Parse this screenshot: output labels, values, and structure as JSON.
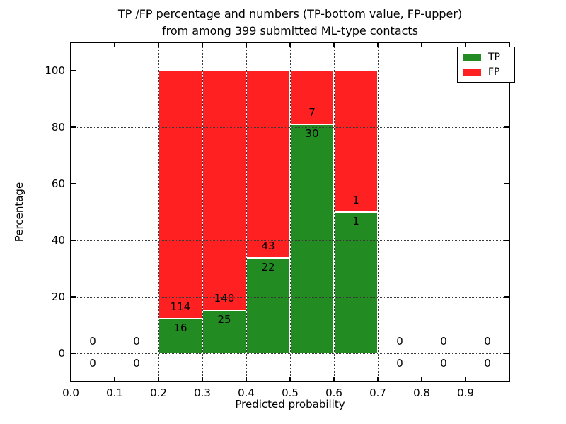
{
  "chart_data": {
    "type": "bar",
    "stacked": true,
    "normalized_total_percent": 100,
    "title_lines": [
      "TP /FP percentage and numbers (TP-bottom value, FP-upper)",
      "from among 399 submitted ML-type contacts"
    ],
    "title": "TP /FP percentage and numbers (TP-bottom value, FP-upper) from among 399 submitted ML-type contacts",
    "xlabel": "Predicted probability",
    "ylabel": "Percentage",
    "xlim": [
      0.0,
      1.0
    ],
    "ylim": [
      -10,
      110
    ],
    "x_ticks": [
      {
        "value": 0.0,
        "label": "0.0"
      },
      {
        "value": 0.1,
        "label": "0.1"
      },
      {
        "value": 0.2,
        "label": "0.2"
      },
      {
        "value": 0.3,
        "label": "0.3"
      },
      {
        "value": 0.4,
        "label": "0.4"
      },
      {
        "value": 0.5,
        "label": "0.5"
      },
      {
        "value": 0.6,
        "label": "0.6"
      },
      {
        "value": 0.7,
        "label": "0.7"
      },
      {
        "value": 0.8,
        "label": "0.8"
      },
      {
        "value": 0.9,
        "label": "0.9"
      }
    ],
    "y_ticks": [
      {
        "value": 0,
        "label": "0"
      },
      {
        "value": 20,
        "label": "20"
      },
      {
        "value": 40,
        "label": "40"
      },
      {
        "value": 60,
        "label": "60"
      },
      {
        "value": 80,
        "label": "80"
      },
      {
        "value": 100,
        "label": "100"
      }
    ],
    "grid": true,
    "grid_style": "dotted",
    "series": [
      {
        "name": "TP",
        "color": "#228B22"
      },
      {
        "name": "FP",
        "color": "#FF2121"
      }
    ],
    "bins": [
      {
        "x_start": 0.0,
        "x_end": 0.1,
        "tp_count": 0,
        "fp_count": 0
      },
      {
        "x_start": 0.1,
        "x_end": 0.2,
        "tp_count": 0,
        "fp_count": 0
      },
      {
        "x_start": 0.2,
        "x_end": 0.3,
        "tp_count": 16,
        "fp_count": 114
      },
      {
        "x_start": 0.3,
        "x_end": 0.4,
        "tp_count": 25,
        "fp_count": 140
      },
      {
        "x_start": 0.4,
        "x_end": 0.5,
        "tp_count": 22,
        "fp_count": 43
      },
      {
        "x_start": 0.5,
        "x_end": 0.6,
        "tp_count": 30,
        "fp_count": 7
      },
      {
        "x_start": 0.6,
        "x_end": 0.7,
        "tp_count": 1,
        "fp_count": 1
      },
      {
        "x_start": 0.7,
        "x_end": 0.8,
        "tp_count": 0,
        "fp_count": 0
      },
      {
        "x_start": 0.8,
        "x_end": 0.9,
        "tp_count": 0,
        "fp_count": 0
      },
      {
        "x_start": 0.9,
        "x_end": 1.0,
        "tp_count": 0,
        "fp_count": 0
      }
    ],
    "total_contacts": 399,
    "legend_position": "upper right",
    "colors": {
      "tp": "#228B22",
      "fp": "#FF2121",
      "bar_edge": "#FFFFFF",
      "grid": "#3A3A3A",
      "spine": "#000000",
      "background": "#FFFFFF",
      "text": "#000000"
    }
  }
}
